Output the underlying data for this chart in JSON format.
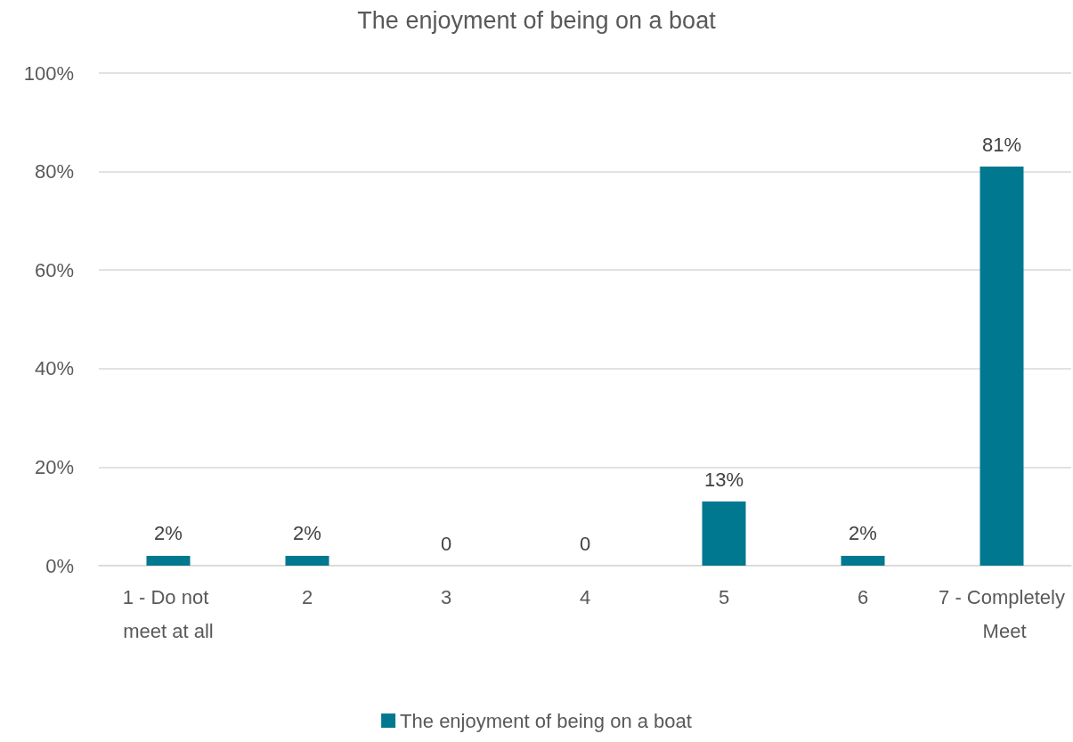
{
  "chart_data": {
    "type": "bar",
    "title": "The enjoyment of being on a boat",
    "categories": [
      "1 - Do not meet at all",
      "2",
      "3",
      "4",
      "5",
      "6",
      "7 - Completely Meet"
    ],
    "series": [
      {
        "name": "The enjoyment of being on a boat",
        "color": "#00788f",
        "values": [
          2,
          2,
          0,
          0,
          13,
          2,
          81
        ],
        "value_labels": [
          "2%",
          "2%",
          "0",
          "0",
          "13%",
          "2%",
          "81%"
        ]
      }
    ],
    "ylim": [
      0,
      100
    ],
    "yticks": [
      {
        "value": 0,
        "label": "0%"
      },
      {
        "value": 20,
        "label": "20%"
      },
      {
        "value": 40,
        "label": "40%"
      },
      {
        "value": 60,
        "label": "60%"
      },
      {
        "value": 80,
        "label": "80%"
      },
      {
        "value": 100,
        "label": "100%"
      }
    ],
    "grid": "y",
    "legend": "bottom"
  }
}
